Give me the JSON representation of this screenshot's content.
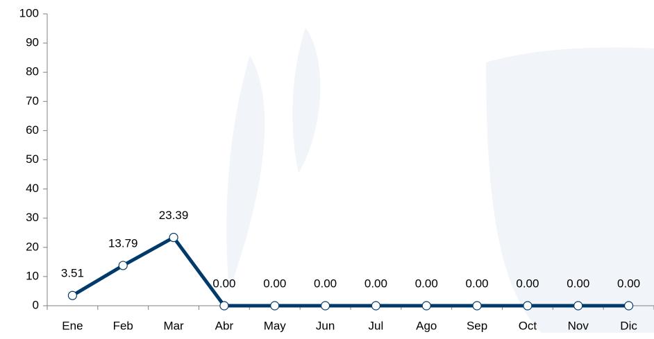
{
  "chart_data": {
    "type": "line",
    "categories": [
      "Ene",
      "Feb",
      "Mar",
      "Abr",
      "May",
      "Jun",
      "Jul",
      "Ago",
      "Sep",
      "Oct",
      "Nov",
      "Dic"
    ],
    "series": [
      {
        "color": "#003a6b",
        "values": [
          3.51,
          13.79,
          23.39,
          0,
          0,
          0,
          0,
          0,
          0,
          0,
          0,
          0
        ],
        "value_labels": [
          "3.51",
          "13.79",
          "23.39",
          "0.00",
          "0.00",
          "0.00",
          "0.00",
          "0.00",
          "0.00",
          "0.00",
          "0.00",
          "0.00"
        ]
      }
    ],
    "ylim": [
      0,
      100
    ],
    "yticks": [
      0,
      10,
      20,
      30,
      40,
      50,
      60,
      70,
      80,
      90,
      100
    ]
  }
}
